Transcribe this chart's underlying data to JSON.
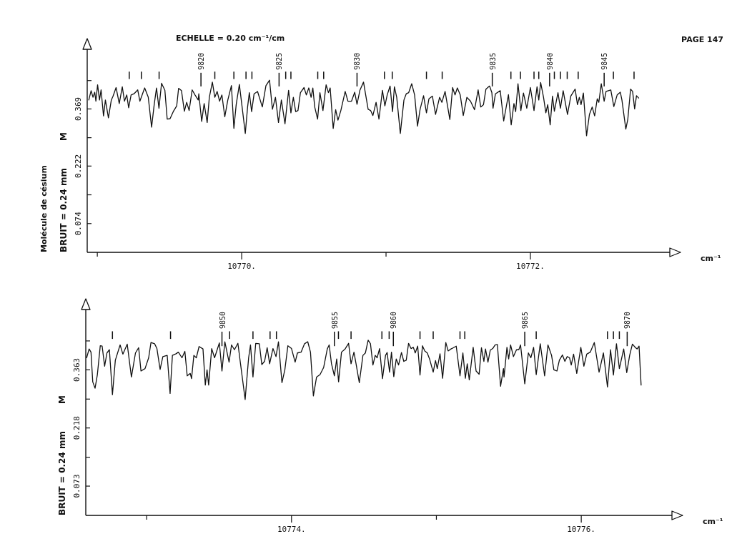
{
  "chart_data": [
    {
      "type": "line",
      "title": "ECHELLE = 0.20 cm⁻¹/cm",
      "xlabel": "cm⁻¹",
      "ylabel": "BRUIT = 0.24 mm",
      "annotations": [
        "M",
        "Molécule de césium",
        "PAGE 147",
        {
          "text": "9820",
          "x": 10769.718,
          "y": 0.462
        },
        {
          "text": "9825",
          "x": 10770.259,
          "y": 0.462
        },
        {
          "text": "9830",
          "x": 10770.799,
          "y": 0.462
        },
        {
          "text": "9835",
          "x": 10771.736,
          "y": 0.462
        },
        {
          "text": "9840",
          "x": 10772.133,
          "y": 0.462
        },
        {
          "text": "9845",
          "x": 10772.511,
          "y": 0.462
        }
      ],
      "xlim": [
        10768.93,
        10773.04
      ],
      "xticks": [
        {
          "value": 10769,
          "label": null
        },
        {
          "value": 10770,
          "label": "10770."
        },
        {
          "value": 10771,
          "label": null
        },
        {
          "value": 10772,
          "label": "10772."
        }
      ],
      "ylim": [
        0,
        0.55
      ],
      "yticks": [
        0.074,
        {
          "value": 0.148,
          "label": null
        },
        0.222,
        {
          "value": 0.295,
          "label": null
        },
        0.369,
        {
          "value": 0.442,
          "label": null
        }
      ],
      "series": [
        {
          "color": "#111111",
          "x": [
            10768.941,
            10768.957,
            10768.97,
            10768.982,
            10768.99,
            10769.002,
            10769.015,
            10769.026,
            10769.043,
            10769.056,
            10769.077,
            10769.097,
            10769.109,
            10769.13,
            10769.152,
            10769.173,
            10769.188,
            10769.204,
            10769.217,
            10769.234,
            10769.254,
            10769.28,
            10769.295,
            10769.328,
            10769.353,
            10769.376,
            10769.394,
            10769.41,
            10769.427,
            10769.445,
            10769.468,
            10769.484,
            10769.504,
            10769.526,
            10769.55,
            10769.563,
            10769.583,
            10769.603,
            10769.619,
            10769.636,
            10769.657,
            10769.677,
            10769.699,
            10769.703,
            10769.723,
            10769.74,
            10769.761,
            10769.776,
            10769.797,
            10769.814,
            10769.83,
            10769.847,
            10769.863,
            10769.883,
            10769.904,
            10769.929,
            10769.946,
            10769.962,
            10769.984,
            10770.003,
            10770.025,
            10770.041,
            10770.053,
            10770.069,
            10770.086,
            10770.11,
            10770.143,
            10770.168,
            10770.193,
            10770.213,
            10770.234,
            10770.255,
            10770.275,
            10770.3,
            10770.325,
            10770.341,
            10770.358,
            10770.374,
            10770.39,
            10770.407,
            10770.432,
            10770.448,
            10770.465,
            10770.481,
            10770.493,
            10770.506,
            10770.526,
            10770.542,
            10770.563,
            10770.585,
            10770.601,
            10770.613,
            10770.634,
            10770.651,
            10770.667,
            10770.687,
            10770.717,
            10770.736,
            10770.761,
            10770.783,
            10770.799,
            10770.819,
            10770.844,
            10770.876,
            10770.893,
            10770.909,
            10770.931,
            10770.951,
            10770.975,
            10770.992,
            10771.008,
            10771.028,
            10771.045,
            10771.058,
            10771.074,
            10771.099,
            10771.124,
            10771.14,
            10771.157,
            10771.178,
            10771.198,
            10771.218,
            10771.236,
            10771.26,
            10771.28,
            10771.297,
            10771.321,
            10771.343,
            10771.371,
            10771.387,
            10771.409,
            10771.442,
            10771.461,
            10771.478,
            10771.494,
            10771.514,
            10771.535,
            10771.56,
            10771.585,
            10771.613,
            10771.638,
            10771.656,
            10771.675,
            10771.692,
            10771.717,
            10771.733,
            10771.741,
            10771.758,
            10771.791,
            10771.815,
            10771.848,
            10771.867,
            10771.886,
            10771.898,
            10771.914,
            10771.934,
            10771.952,
            10771.975,
            10772,
            10772.025,
            10772.046,
            10772.058,
            10772.071,
            10772.091,
            10772.107,
            10772.12,
            10772.137,
            10772.153,
            10772.166,
            10772.191,
            10772.208,
            10772.227,
            10772.257,
            10772.28,
            10772.293,
            10772.31,
            10772.326,
            10772.339,
            10772.351,
            10772.367,
            10772.389,
            10772.409,
            10772.428,
            10772.445,
            10772.463,
            10772.474,
            10772.491,
            10772.511,
            10772.524,
            10772.557,
            10772.578,
            10772.601,
            10772.623,
            10772.634,
            10772.661,
            10772.675,
            10772.694,
            10772.708,
            10772.722,
            10772.735,
            10772.75
          ],
          "values": [
            0.392,
            0.416,
            0.399,
            0.412,
            0.389,
            0.431,
            0.392,
            0.418,
            0.351,
            0.392,
            0.346,
            0.392,
            0.402,
            0.424,
            0.383,
            0.426,
            0.389,
            0.405,
            0.372,
            0.405,
            0.408,
            0.418,
            0.389,
            0.423,
            0.399,
            0.322,
            0.38,
            0.423,
            0.371,
            0.435,
            0.417,
            0.343,
            0.344,
            0.362,
            0.377,
            0.422,
            0.416,
            0.363,
            0.386,
            0.365,
            0.418,
            0.405,
            0.392,
            0.408,
            0.337,
            0.383,
            0.334,
            0.399,
            0.438,
            0.399,
            0.414,
            0.389,
            0.405,
            0.349,
            0.392,
            0.429,
            0.319,
            0.38,
            0.432,
            0.374,
            0.306,
            0.374,
            0.411,
            0.362,
            0.408,
            0.414,
            0.374,
            0.429,
            0.443,
            0.368,
            0.399,
            0.334,
            0.392,
            0.331,
            0.417,
            0.359,
            0.399,
            0.362,
            0.365,
            0.411,
            0.424,
            0.405,
            0.423,
            0.399,
            0.423,
            0.374,
            0.343,
            0.411,
            0.365,
            0.431,
            0.411,
            0.423,
            0.319,
            0.367,
            0.34,
            0.365,
            0.414,
            0.389,
            0.389,
            0.412,
            0.381,
            0.417,
            0.438,
            0.368,
            0.365,
            0.352,
            0.386,
            0.343,
            0.417,
            0.377,
            0.405,
            0.428,
            0.362,
            0.426,
            0.399,
            0.306,
            0.392,
            0.408,
            0.411,
            0.434,
            0.405,
            0.325,
            0.368,
            0.403,
            0.359,
            0.395,
            0.402,
            0.355,
            0.399,
            0.386,
            0.414,
            0.342,
            0.424,
            0.405,
            0.423,
            0.405,
            0.352,
            0.399,
            0.389,
            0.367,
            0.418,
            0.374,
            0.38,
            0.42,
            0.428,
            0.411,
            0.371,
            0.408,
            0.416,
            0.338,
            0.406,
            0.328,
            0.383,
            0.362,
            0.434,
            0.365,
            0.41,
            0.371,
            0.424,
            0.365,
            0.426,
            0.392,
            0.437,
            0.399,
            0.359,
            0.38,
            0.328,
            0.402,
            0.363,
            0.411,
            0.371,
            0.416,
            0.355,
            0.402,
            0.41,
            0.42,
            0.38,
            0.399,
            0.38,
            0.41,
            0.3,
            0.355,
            0.374,
            0.351,
            0.395,
            0.386,
            0.434,
            0.389,
            0.414,
            0.418,
            0.375,
            0.405,
            0.412,
            0.392,
            0.317,
            0.343,
            0.42,
            0.414,
            0.369,
            0.403,
            0.397
          ]
        },
        {
          "type": "bar",
          "color": "#111111",
          "x": [
            10769.221,
            10769.305,
            10769.428,
            10769.718,
            10769.814,
            10769.946,
            10770.03,
            10770.071,
            10770.259,
            10770.305,
            10770.341,
            10770.527,
            10770.568,
            10770.799,
            10770.989,
            10771.043,
            10771.28,
            10771.389,
            10771.736,
            10771.865,
            10771.931,
            10772.025,
            10772.058,
            10772.133,
            10772.166,
            10772.208,
            10772.255,
            10772.331,
            10772.511,
            10772.575,
            10772.718
          ],
          "base": [
            0.446,
            0.446,
            0.446,
            0.427,
            0.446,
            0.446,
            0.446,
            0.446,
            0.427,
            0.446,
            0.446,
            0.446,
            0.446,
            0.427,
            0.446,
            0.446,
            0.446,
            0.446,
            0.427,
            0.446,
            0.446,
            0.446,
            0.446,
            0.427,
            0.446,
            0.446,
            0.446,
            0.446,
            0.427,
            0.446,
            0.446
          ],
          "values": [
            0.019,
            0.019,
            0.019,
            0.035,
            0.019,
            0.019,
            0.019,
            0.019,
            0.035,
            0.019,
            0.019,
            0.019,
            0.019,
            0.035,
            0.019,
            0.019,
            0.019,
            0.019,
            0.035,
            0.019,
            0.019,
            0.019,
            0.019,
            0.035,
            0.019,
            0.019,
            0.019,
            0.019,
            0.035,
            0.019,
            0.019
          ]
        }
      ]
    },
    {
      "type": "line",
      "xlabel": "cm⁻¹",
      "ylabel": "BRUIT = 0.24 mm",
      "annotations": [
        "M",
        {
          "text": "9850",
          "x": 10773.52,
          "y": 0.458
        },
        {
          "text": "9855",
          "x": 10774.296,
          "y": 0.458
        },
        {
          "text": "9860",
          "x": 10774.703,
          "y": 0.458
        },
        {
          "text": "9865",
          "x": 10775.61,
          "y": 0.458
        },
        {
          "text": "9870",
          "x": 10776.317,
          "y": 0.458
        }
      ],
      "xlim": [
        10772.58,
        10776.7
      ],
      "xticks": [
        {
          "value": 10773,
          "label": null
        },
        {
          "value": 10774,
          "label": "10774."
        },
        {
          "value": 10775,
          "label": null
        },
        {
          "value": 10776,
          "label": "10776."
        }
      ],
      "ylim": [
        0,
        0.54
      ],
      "yticks": [
        0.073,
        {
          "value": 0.145,
          "label": null
        },
        0.218,
        {
          "value": 0.29,
          "label": null
        },
        0.363,
        {
          "value": 0.435,
          "label": null
        }
      ],
      "series": [
        {
          "color": "#111111",
          "x": [
            10772.586,
            10772.603,
            10772.616,
            10772.628,
            10772.644,
            10772.66,
            10772.68,
            10772.693,
            10772.71,
            10772.726,
            10772.743,
            10772.764,
            10772.784,
            10772.817,
            10772.836,
            10772.866,
            10772.895,
            10772.923,
            10772.945,
            10772.961,
            10772.989,
            10773.014,
            10773.03,
            10773.055,
            10773.071,
            10773.093,
            10773.112,
            10773.142,
            10773.162,
            10773.178,
            10773.203,
            10773.219,
            10773.244,
            10773.264,
            10773.28,
            10773.301,
            10773.31,
            10773.326,
            10773.343,
            10773.362,
            10773.389,
            10773.405,
            10773.417,
            10773.428,
            10773.449,
            10773.469,
            10773.502,
            10773.52,
            10773.54,
            10773.569,
            10773.586,
            10773.606,
            10773.63,
            10773.647,
            10773.68,
            10773.704,
            10773.717,
            10773.734,
            10773.753,
            10773.778,
            10773.795,
            10773.814,
            10773.832,
            10773.849,
            10773.872,
            10773.893,
            10773.91,
            10773.934,
            10773.954,
            10773.975,
            10774,
            10774.025,
            10774.041,
            10774.066,
            10774.09,
            10774.112,
            10774.131,
            10774.151,
            10774.173,
            10774.197,
            10774.222,
            10774.247,
            10774.26,
            10774.276,
            10774.296,
            10774.312,
            10774.325,
            10774.345,
            10774.37,
            10774.394,
            10774.411,
            10774.431,
            10774.447,
            10774.468,
            10774.493,
            10774.51,
            10774.529,
            10774.545,
            10774.562,
            10774.578,
            10774.591,
            10774.608,
            10774.628,
            10774.649,
            10774.66,
            10774.677,
            10774.69,
            10774.706,
            10774.723,
            10774.739,
            10774.759,
            10774.775,
            10774.792,
            10774.808,
            10774.825,
            10774.841,
            10774.854,
            10774.871,
            10774.887,
            10774.904,
            10774.92,
            10774.937,
            10774.953,
            10774.978,
            10774.994,
            10775.006,
            10775.025,
            10775.043,
            10775.065,
            10775.081,
            10775.101,
            10775.117,
            10775.137,
            10775.163,
            10775.183,
            10775.2,
            10775.213,
            10775.227,
            10775.254,
            10775.274,
            10775.295,
            10775.311,
            10775.328,
            10775.339,
            10775.356,
            10775.372,
            10775.389,
            10775.405,
            10775.421,
            10775.443,
            10775.463,
            10775.467,
            10775.487,
            10775.499,
            10775.512,
            10775.532,
            10775.553,
            10775.569,
            10775.581,
            10775.61,
            10775.635,
            10775.652,
            10775.671,
            10775.689,
            10775.717,
            10775.747,
            10775.77,
            10775.795,
            10775.811,
            10775.832,
            10775.849,
            10775.87,
            10775.887,
            10775.903,
            10775.919,
            10775.931,
            10775.947,
            10775.969,
            10775.997,
            10776.018,
            10776.038,
            10776.062,
            10776.09,
            10776.123,
            10776.153,
            10776.181,
            10776.202,
            10776.222,
            10776.243,
            10776.263,
            10776.293,
            10776.314,
            10776.334,
            10776.353,
            10776.375,
            10776.386,
            10776.399,
            10776.413
          ],
          "values": [
            0.393,
            0.415,
            0.407,
            0.333,
            0.317,
            0.351,
            0.423,
            0.422,
            0.372,
            0.405,
            0.413,
            0.301,
            0.387,
            0.425,
            0.402,
            0.427,
            0.345,
            0.405,
            0.418,
            0.36,
            0.366,
            0.393,
            0.431,
            0.428,
            0.416,
            0.364,
            0.396,
            0.399,
            0.304,
            0.399,
            0.403,
            0.407,
            0.393,
            0.409,
            0.348,
            0.354,
            0.341,
            0.399,
            0.393,
            0.421,
            0.415,
            0.325,
            0.363,
            0.325,
            0.416,
            0.393,
            0.43,
            0.36,
            0.433,
            0.382,
            0.425,
            0.413,
            0.429,
            0.381,
            0.289,
            0.393,
            0.425,
            0.345,
            0.429,
            0.428,
            0.376,
            0.384,
            0.418,
            0.378,
            0.416,
            0.396,
            0.433,
            0.331,
            0.363,
            0.423,
            0.416,
            0.382,
            0.405,
            0.407,
            0.428,
            0.433,
            0.407,
            0.298,
            0.345,
            0.351,
            0.369,
            0.415,
            0.425,
            0.378,
            0.348,
            0.39,
            0.333,
            0.407,
            0.415,
            0.429,
            0.378,
            0.407,
            0.375,
            0.331,
            0.399,
            0.405,
            0.437,
            0.428,
            0.375,
            0.399,
            0.393,
            0.416,
            0.341,
            0.399,
            0.406,
            0.357,
            0.407,
            0.346,
            0.39,
            0.375,
            0.406,
            0.384,
            0.387,
            0.429,
            0.416,
            0.419,
            0.405,
            0.422,
            0.35,
            0.423,
            0.41,
            0.405,
            0.39,
            0.357,
            0.386,
            0.366,
            0.403,
            0.342,
            0.431,
            0.41,
            0.415,
            0.418,
            0.422,
            0.348,
            0.405,
            0.342,
            0.378,
            0.338,
            0.419,
            0.36,
            0.352,
            0.418,
            0.384,
            0.415,
            0.382,
            0.412,
            0.416,
            0.425,
            0.426,
            0.322,
            0.366,
            0.345,
            0.419,
            0.39,
            0.425,
            0.396,
            0.413,
            0.413,
            0.425,
            0.328,
            0.405,
            0.393,
            0.419,
            0.351,
            0.428,
            0.348,
            0.425,
            0.399,
            0.363,
            0.36,
            0.387,
            0.4,
            0.384,
            0.396,
            0.393,
            0.375,
            0.402,
            0.354,
            0.419,
            0.372,
            0.402,
            0.407,
            0.431,
            0.357,
            0.405,
            0.32,
            0.413,
            0.35,
            0.428,
            0.366,
            0.415,
            0.356,
            0.399,
            0.427,
            0.418,
            0.415,
            0.422,
            0.325
          ]
        },
        {
          "type": "bar",
          "color": "#111111",
          "x": [
            10772.764,
            10773.165,
            10773.52,
            10773.573,
            10773.734,
            10773.852,
            10773.896,
            10774.296,
            10774.324,
            10774.411,
            10774.624,
            10774.674,
            10774.703,
            10774.887,
            10774.978,
            10775.163,
            10775.196,
            10775.61,
            10775.689,
            10776.181,
            10776.222,
            10776.263,
            10776.317
          ],
          "base": [
            0.44,
            0.44,
            0.422,
            0.44,
            0.44,
            0.44,
            0.44,
            0.422,
            0.44,
            0.44,
            0.44,
            0.44,
            0.422,
            0.44,
            0.44,
            0.44,
            0.44,
            0.422,
            0.44,
            0.44,
            0.44,
            0.44,
            0.422
          ],
          "values": [
            0.019,
            0.019,
            0.036,
            0.019,
            0.019,
            0.019,
            0.019,
            0.036,
            0.019,
            0.019,
            0.019,
            0.019,
            0.036,
            0.019,
            0.019,
            0.019,
            0.019,
            0.036,
            0.019,
            0.019,
            0.019,
            0.019,
            0.036
          ]
        }
      ]
    }
  ]
}
